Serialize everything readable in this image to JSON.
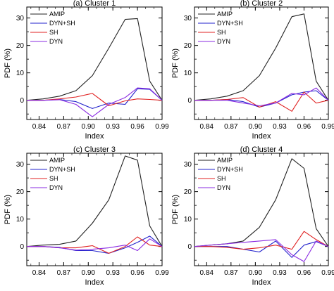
{
  "chart_data": [
    {
      "type": "line",
      "title": "(a) Cluster 1",
      "xlabel": "Index",
      "ylabel": "PDF (%)",
      "x": [
        0.825,
        0.845,
        0.865,
        0.885,
        0.905,
        0.925,
        0.945,
        0.96,
        0.975,
        0.99
      ],
      "xticks": [
        "0.84",
        "0.87",
        "0.90",
        "0.93",
        "0.96",
        "0.99"
      ],
      "xlim": [
        0.825,
        0.99
      ],
      "ylim": [
        -7,
        34
      ],
      "yticks": [
        0,
        10,
        20,
        30
      ],
      "legend_position": "top-left",
      "series": [
        {
          "name": "AMIP",
          "color": "#222222",
          "values": [
            0,
            0.5,
            1.5,
            3.5,
            9,
            19,
            29.5,
            29.8,
            7,
            0
          ]
        },
        {
          "name": "DYN+SH",
          "color": "#2222cc",
          "values": [
            0,
            0,
            0.3,
            -0.5,
            -3,
            -1,
            -1.5,
            4.2,
            4,
            0
          ]
        },
        {
          "name": "SH",
          "color": "#e02020",
          "values": [
            0,
            0,
            0.5,
            1.2,
            2.5,
            -2,
            -0.2,
            0.5,
            0.3,
            0
          ]
        },
        {
          "name": "DYN",
          "color": "#8a2be2",
          "values": [
            0,
            0,
            0.2,
            -1.5,
            -6,
            -1.5,
            1,
            4.5,
            4.2,
            0
          ]
        }
      ]
    },
    {
      "type": "line",
      "title": "(b) Cluster 2",
      "xlabel": "Index",
      "ylabel": "PDF (%)",
      "x": [
        0.825,
        0.845,
        0.865,
        0.885,
        0.905,
        0.925,
        0.945,
        0.96,
        0.975,
        0.99
      ],
      "xticks": [
        "0.84",
        "0.87",
        "0.90",
        "0.93",
        "0.96",
        "0.99"
      ],
      "xlim": [
        0.825,
        0.99
      ],
      "ylim": [
        -7,
        34
      ],
      "yticks": [
        0,
        10,
        20,
        30
      ],
      "legend_position": "top-left",
      "series": [
        {
          "name": "AMIP",
          "color": "#222222",
          "values": [
            0,
            0.5,
            1.5,
            3.5,
            9,
            19,
            30.5,
            31.5,
            7,
            0
          ]
        },
        {
          "name": "DYN+SH",
          "color": "#2222cc",
          "values": [
            0,
            0,
            0.3,
            -0.5,
            -2.5,
            -1,
            2,
            3,
            3.5,
            0
          ]
        },
        {
          "name": "SH",
          "color": "#e02020",
          "values": [
            0,
            0,
            0.3,
            1,
            -2.5,
            -0.5,
            -4,
            3,
            -1,
            0
          ]
        },
        {
          "name": "DYN",
          "color": "#8a2be2",
          "values": [
            0,
            0,
            0,
            -1,
            -2,
            -1,
            2.5,
            2,
            4.5,
            0
          ]
        }
      ]
    },
    {
      "type": "line",
      "title": "(c) Cluster 3",
      "xlabel": "Index",
      "ylabel": "PDF (%)",
      "x": [
        0.825,
        0.845,
        0.865,
        0.885,
        0.905,
        0.925,
        0.945,
        0.96,
        0.975,
        0.99
      ],
      "xticks": [
        "0.84",
        "0.87",
        "0.90",
        "0.93",
        "0.96",
        "0.99"
      ],
      "xlim": [
        0.825,
        0.99
      ],
      "ylim": [
        -7,
        34
      ],
      "yticks": [
        0,
        10,
        20,
        30
      ],
      "legend_position": "top-left",
      "series": [
        {
          "name": "AMIP",
          "color": "#222222",
          "values": [
            0,
            0.5,
            0.8,
            2,
            8.5,
            17,
            33,
            31.5,
            7.5,
            0
          ]
        },
        {
          "name": "DYN+SH",
          "color": "#2222cc",
          "values": [
            0,
            0,
            -0.3,
            -1.5,
            -1.5,
            -2.5,
            -0.5,
            1.5,
            3.8,
            0
          ]
        },
        {
          "name": "SH",
          "color": "#e02020",
          "values": [
            0,
            0,
            -0.5,
            -0.5,
            0.3,
            -2.5,
            0,
            3.5,
            0.5,
            0
          ]
        },
        {
          "name": "DYN",
          "color": "#8a2be2",
          "values": [
            0,
            0,
            -0.5,
            -1.3,
            -1,
            -0.5,
            0.5,
            -1.5,
            2.8,
            0
          ]
        }
      ]
    },
    {
      "type": "line",
      "title": "(d) Cluster 4",
      "xlabel": "Index",
      "ylabel": "PDF (%)",
      "x": [
        0.825,
        0.845,
        0.865,
        0.885,
        0.905,
        0.925,
        0.945,
        0.96,
        0.975,
        0.99
      ],
      "xticks": [
        "0.84",
        "0.87",
        "0.90",
        "0.93",
        "0.96",
        "0.99"
      ],
      "xlim": [
        0.825,
        0.99
      ],
      "ylim": [
        -7,
        34
      ],
      "yticks": [
        0,
        10,
        20,
        30
      ],
      "legend_position": "top-left",
      "series": [
        {
          "name": "AMIP",
          "color": "#222222",
          "values": [
            0,
            0.5,
            1,
            2,
            7,
            17,
            32,
            28.5,
            6.5,
            0
          ]
        },
        {
          "name": "DYN+SH",
          "color": "#2222cc",
          "values": [
            0,
            0,
            0,
            -1,
            -2,
            2,
            -4,
            0.5,
            1.8,
            0
          ]
        },
        {
          "name": "SH",
          "color": "#e02020",
          "values": [
            0,
            0,
            -0.3,
            -1,
            -0.5,
            0.5,
            -1,
            5.5,
            2.5,
            0
          ]
        },
        {
          "name": "DYN",
          "color": "#8a2be2",
          "values": [
            0,
            0.5,
            1,
            1.5,
            2,
            2.5,
            -3,
            -5.5,
            2,
            0
          ]
        }
      ]
    }
  ]
}
